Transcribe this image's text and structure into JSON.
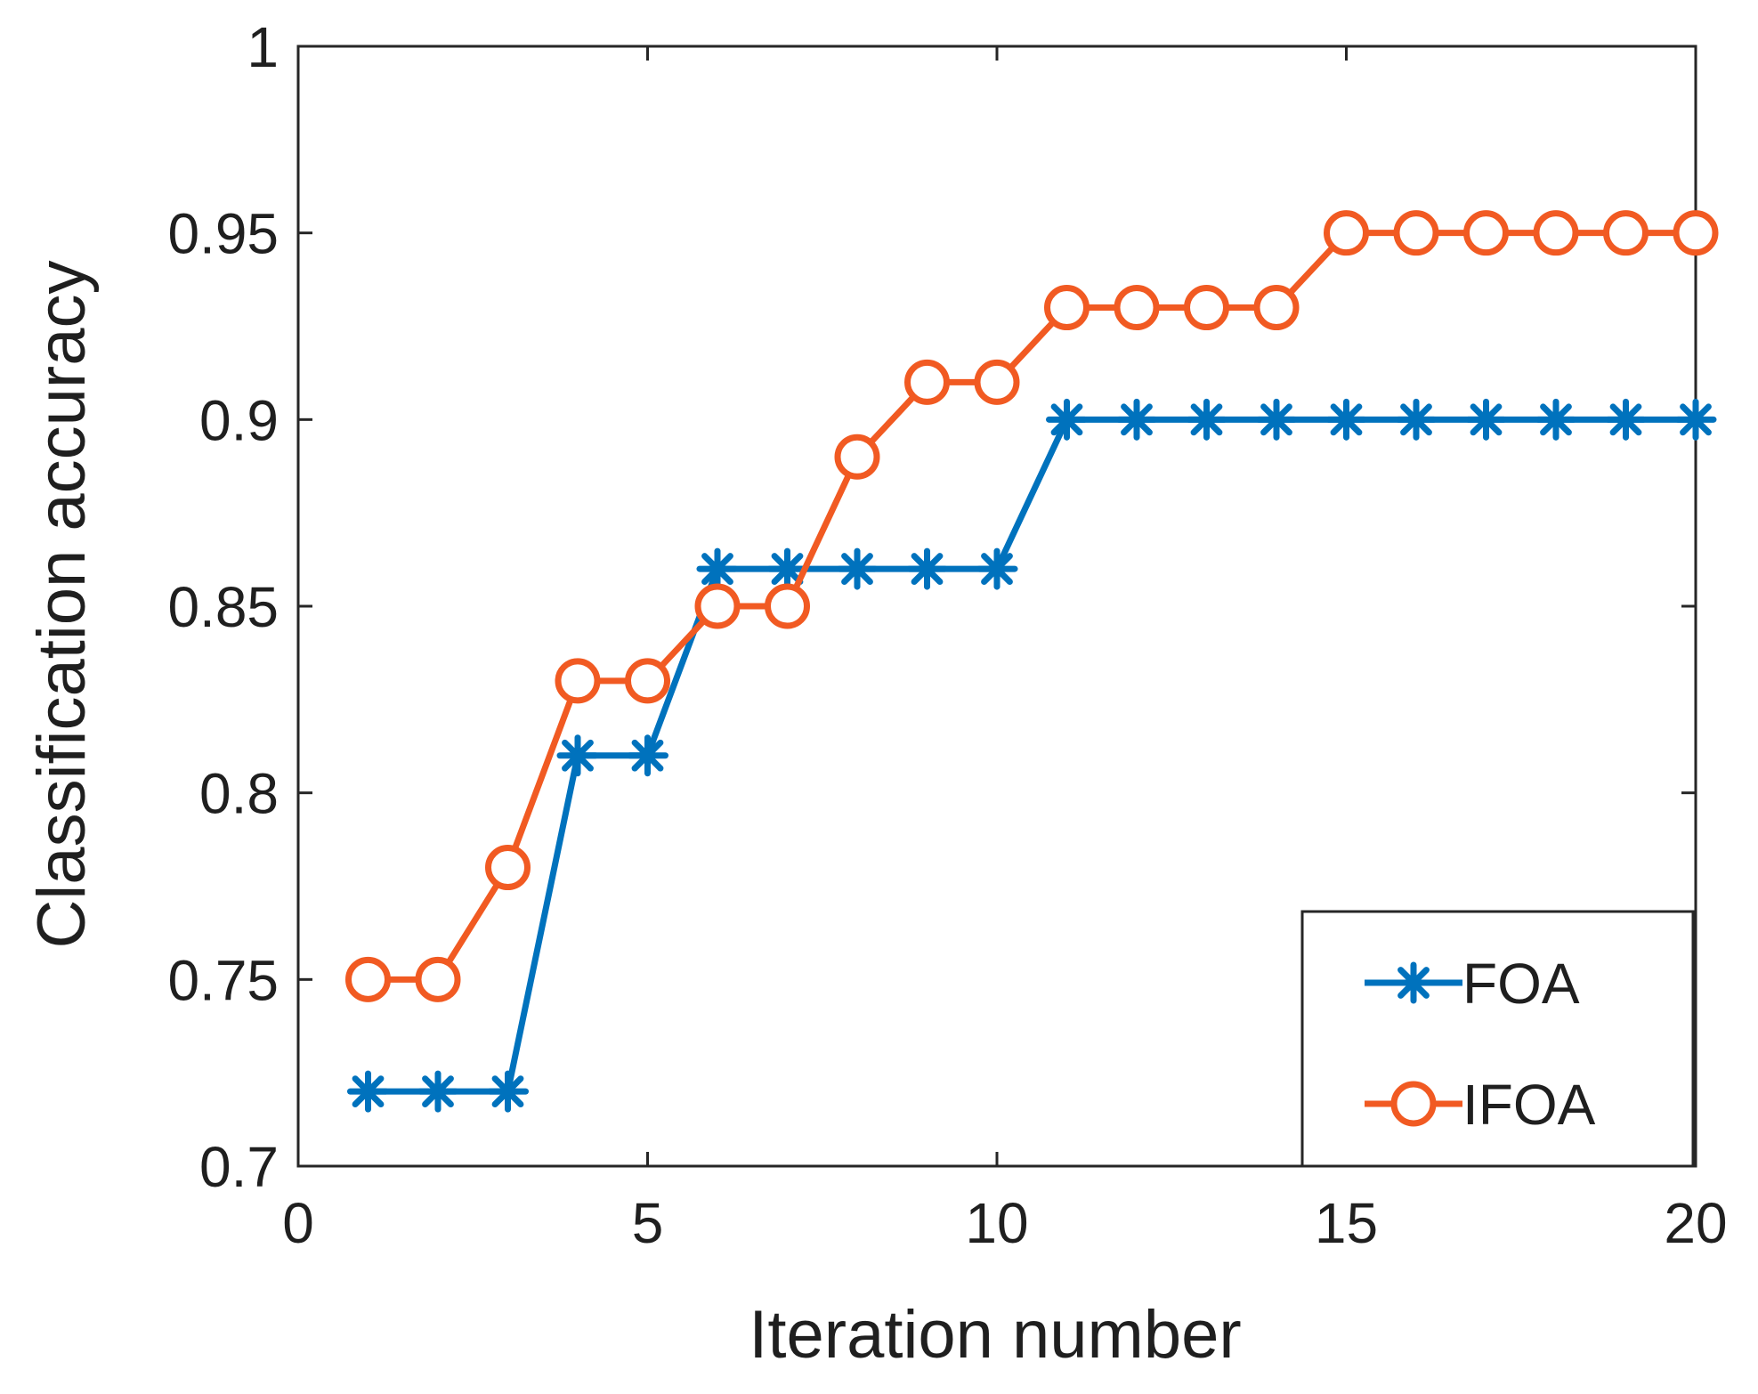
{
  "chart_data": {
    "type": "line",
    "title": "",
    "xlabel": "Iteration number",
    "ylabel": "Classification accuracy",
    "xlim": [
      0,
      20
    ],
    "ylim": [
      0.7,
      1
    ],
    "xticks": [
      0,
      5,
      10,
      15,
      20
    ],
    "xtick_labels": [
      "0",
      "5",
      "10",
      "15",
      "20"
    ],
    "yticks": [
      0.7,
      0.75,
      0.8,
      0.85,
      0.9,
      0.95,
      1
    ],
    "ytick_labels": [
      "0.7",
      "0.75",
      "0.8",
      "0.85",
      "0.9",
      "0.95",
      "1"
    ],
    "grid": false,
    "legend_position": "bottom-right",
    "x": [
      1,
      2,
      3,
      4,
      5,
      6,
      7,
      8,
      9,
      10,
      11,
      12,
      13,
      14,
      15,
      16,
      17,
      18,
      19,
      20
    ],
    "series": [
      {
        "name": "FOA",
        "color": "#0072BD",
        "marker": "asterisk",
        "values": [
          0.72,
          0.72,
          0.72,
          0.81,
          0.81,
          0.86,
          0.86,
          0.86,
          0.86,
          0.86,
          0.9,
          0.9,
          0.9,
          0.9,
          0.9,
          0.9,
          0.9,
          0.9,
          0.9,
          0.9
        ]
      },
      {
        "name": "IFOA",
        "color": "#F15A22",
        "marker": "circle",
        "values": [
          0.75,
          0.75,
          0.78,
          0.83,
          0.83,
          0.85,
          0.85,
          0.89,
          0.91,
          0.91,
          0.93,
          0.93,
          0.93,
          0.93,
          0.95,
          0.95,
          0.95,
          0.95,
          0.95,
          0.95
        ]
      }
    ]
  }
}
